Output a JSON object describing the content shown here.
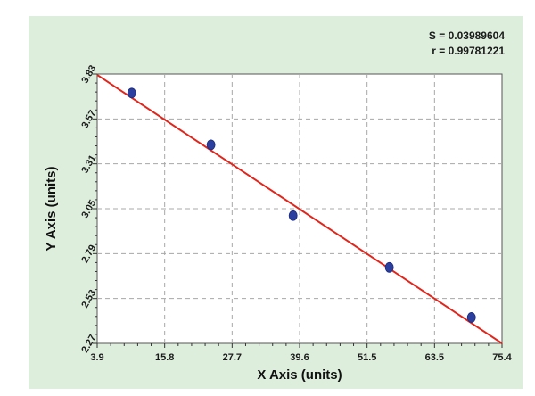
{
  "chart_data": {
    "type": "scatter",
    "title": "",
    "xlabel": "X Axis (units)",
    "ylabel": "Y Axis (units)",
    "xlim": [
      3.9,
      75.4
    ],
    "ylim": [
      2.27,
      3.83
    ],
    "x_ticks": [
      "3.9",
      "15.8",
      "27.7",
      "39.6",
      "51.5",
      "63.5",
      "75.4"
    ],
    "y_ticks": [
      "2.27",
      "2.53",
      "2.79",
      "3.05",
      "3.31",
      "3.57",
      "3.83"
    ],
    "grid": true,
    "annotations": {
      "s_text": "S = 0.03989604",
      "r_text": "r = 0.99781221"
    },
    "series": [
      {
        "points": [
          {
            "x": 10.0,
            "y": 3.72
          },
          {
            "x": 24.0,
            "y": 3.42
          },
          {
            "x": 38.5,
            "y": 3.01
          },
          {
            "x": 55.5,
            "y": 2.71
          },
          {
            "x": 70.0,
            "y": 2.42
          }
        ],
        "color": "#2a3f9f"
      }
    ],
    "fit_line": {
      "x": [
        3.9,
        75.4
      ],
      "y": [
        3.825,
        2.27
      ],
      "color": "#e0261c"
    },
    "colors": {
      "background": "#ddeedd",
      "plot_area": "#ffffff",
      "grid": "#a8a8a8"
    }
  }
}
